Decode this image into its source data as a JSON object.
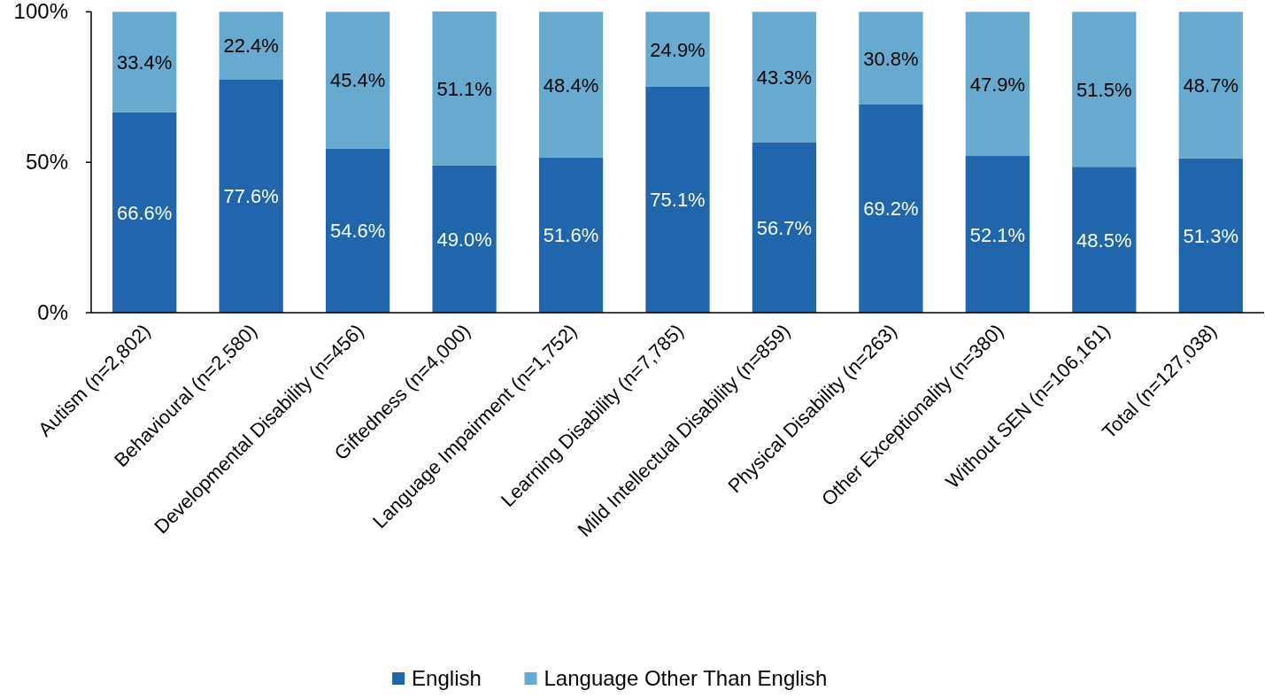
{
  "chart_data": {
    "type": "bar",
    "stacked": true,
    "categories": [
      "Autism (n=2,802)",
      "Behavioural (n=2,580)",
      "Developmental Disability (n=456)",
      "Giftedness (n=4,000)",
      "Language Impairment (n=1,752)",
      "Learning Disability (n=7,785)",
      "Mild Intellectual Disability (n=859)",
      "Physical Disability (n=263)",
      "Other Exceptionality (n=380)",
      "Without SEN (n=106,161)",
      "Total (n=127,038)"
    ],
    "series": [
      {
        "name": "English",
        "color": "#2166ac",
        "values": [
          66.6,
          77.6,
          54.6,
          49.0,
          51.6,
          75.1,
          56.7,
          69.2,
          52.1,
          48.5,
          51.3
        ],
        "value_labels": [
          "66.6%",
          "77.6%",
          "54.6%",
          "49.0%",
          "51.6%",
          "75.1%",
          "56.7%",
          "69.2%",
          "52.1%",
          "48.5%",
          "51.3%"
        ]
      },
      {
        "name": "Language Other Than English",
        "color": "#67a9cf",
        "values": [
          33.4,
          22.4,
          45.4,
          51.1,
          48.4,
          24.9,
          43.3,
          30.8,
          47.9,
          51.5,
          48.7
        ],
        "value_labels": [
          "33.4%",
          "22.4%",
          "45.4%",
          "51.1%",
          "48.4%",
          "24.9%",
          "43.3%",
          "30.8%",
          "47.9%",
          "51.5%",
          "48.7%"
        ]
      }
    ],
    "ylim": [
      0,
      100.1
    ],
    "yticks": [
      {
        "value": 0,
        "label": "0%"
      },
      {
        "value": 50,
        "label": "50%"
      },
      {
        "value": 100,
        "label": "100%"
      }
    ],
    "grid": false,
    "legend": "bottom"
  }
}
